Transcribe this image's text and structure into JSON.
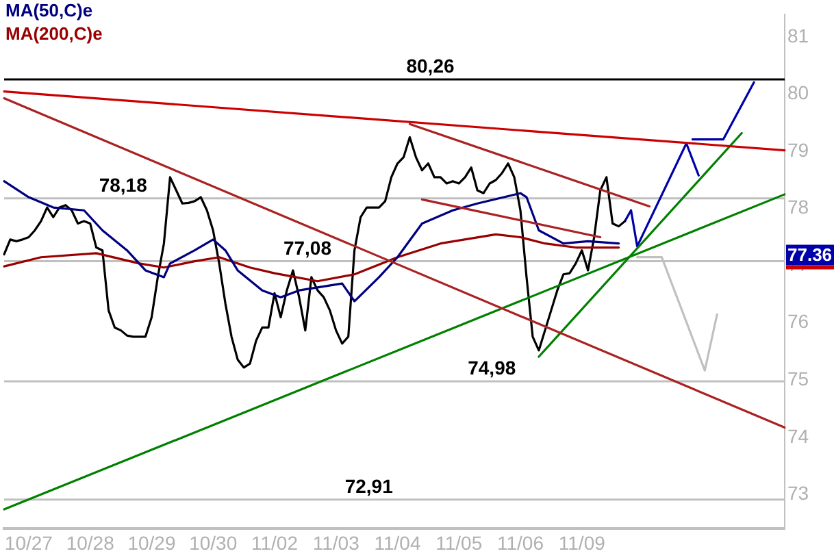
{
  "chart_data": {
    "type": "line",
    "ylim": [
      72.4,
      81.4
    ],
    "yticks": [
      73,
      74,
      75,
      76,
      77,
      78,
      79,
      80,
      81
    ],
    "categories": [
      null,
      null,
      null,
      null,
      "10/27",
      null,
      null,
      null,
      null,
      null,
      null,
      null,
      null,
      null,
      "10/28",
      null,
      null,
      null,
      null,
      null,
      null,
      null,
      null,
      null,
      "10/29",
      null,
      null,
      null,
      null,
      null,
      null,
      null,
      null,
      null,
      "10/30",
      null,
      null,
      null,
      null,
      null,
      null,
      null,
      null,
      null,
      "11/02",
      null,
      null,
      null,
      null,
      null,
      null,
      null,
      null,
      null,
      "11/03",
      null,
      null,
      null,
      null,
      null,
      null,
      null,
      null,
      null,
      "11/04",
      null,
      null,
      null,
      null,
      null,
      null,
      null,
      null,
      null,
      "11/05",
      null,
      null,
      null,
      null,
      null,
      null,
      null,
      null,
      null,
      "11/06",
      null,
      null,
      null,
      null,
      null,
      null,
      null,
      null,
      null,
      "11/09",
      null,
      null,
      null,
      null,
      null,
      null,
      null,
      null,
      null,
      null,
      null,
      null,
      null,
      null,
      null,
      null,
      null,
      null,
      null,
      null,
      null,
      null,
      null,
      null,
      null,
      null,
      null,
      null,
      null,
      null,
      null,
      null,
      null
    ],
    "legend": "top left",
    "marker": "none",
    "grid": false,
    "ref_lines": [
      {
        "axis": "y",
        "value": 80.26,
        "color": "#000000"
      },
      {
        "axis": "y",
        "value": 78.18,
        "color": "#c0c0c0"
      },
      {
        "axis": "y",
        "value": 77.08,
        "color": "#c0c0c0"
      },
      {
        "axis": "y",
        "value": 74.98,
        "color": "#c0c0c0"
      },
      {
        "axis": "y",
        "value": 72.91,
        "color": "#c0c0c0"
      }
    ],
    "annotations": [
      {
        "text": "80,26",
        "x": "11/04",
        "y": 80.26
      },
      {
        "text": "78,18",
        "x": "10/28",
        "y": 78.18
      },
      {
        "text": "77,08",
        "x": "11/02",
        "y": 77.08
      },
      {
        "text": "74,98",
        "x": "11/05",
        "y": 74.98
      },
      {
        "text": "72,91",
        "x": "11/03",
        "y": 72.91
      },
      "77.36"
    ],
    "series": [
      {
        "color": "#cc0000",
        "values": [
          80.05,
          null,
          null,
          null,
          null,
          null,
          null,
          null,
          null,
          null,
          null,
          null,
          null,
          null,
          null,
          null,
          null,
          null,
          null,
          null,
          null,
          null,
          null,
          null,
          null,
          null,
          null,
          null,
          null,
          null,
          null,
          null,
          null,
          null,
          null,
          null,
          null,
          null,
          null,
          null,
          null,
          null,
          null,
          null,
          null,
          null,
          null,
          null,
          null,
          null,
          null,
          null,
          null,
          null,
          null,
          null,
          null,
          null,
          null,
          null,
          null,
          null,
          null,
          null,
          null,
          null,
          null,
          null,
          null,
          null,
          null,
          null,
          null,
          null,
          null,
          null,
          null,
          null,
          null,
          null,
          null,
          null,
          null,
          null,
          null,
          null,
          null,
          null,
          null,
          null,
          null,
          null,
          null,
          null,
          null,
          null,
          null,
          null,
          null,
          null,
          null,
          null,
          null,
          null,
          null,
          null,
          null,
          null,
          null,
          null,
          null,
          null,
          null,
          null,
          null,
          null,
          null,
          null,
          null,
          null,
          null,
          null,
          null,
          null,
          null,
          null,
          null,
          79.02
        ]
      },
      {
        "color": "#aa2222",
        "values": [
          79.93,
          null,
          null,
          null,
          null,
          null,
          null,
          null,
          null,
          null,
          null,
          null,
          null,
          null,
          null,
          null,
          null,
          null,
          null,
          null,
          null,
          null,
          null,
          null,
          null,
          null,
          null,
          null,
          null,
          null,
          null,
          null,
          null,
          null,
          null,
          null,
          null,
          null,
          null,
          null,
          null,
          null,
          null,
          null,
          null,
          null,
          null,
          null,
          null,
          null,
          null,
          null,
          null,
          null,
          null,
          null,
          null,
          null,
          null,
          null,
          null,
          null,
          null,
          null,
          null,
          null,
          null,
          null,
          null,
          null,
          null,
          null,
          null,
          null,
          null,
          null,
          null,
          null,
          null,
          null,
          null,
          null,
          null,
          null,
          null,
          null,
          null,
          null,
          null,
          null,
          null,
          null,
          null,
          null,
          null,
          null,
          null,
          null,
          null,
          null,
          null,
          null,
          null,
          null,
          null,
          null,
          null,
          null,
          null,
          null,
          null,
          null,
          null,
          null,
          null,
          null,
          null,
          null,
          null,
          null,
          null,
          null,
          null,
          null,
          null,
          null,
          null,
          74.17
        ]
      },
      {
        "color": "#aa2222",
        "values": [
          null,
          null,
          null,
          null,
          null,
          null,
          null,
          null,
          null,
          null,
          null,
          null,
          null,
          null,
          null,
          null,
          null,
          null,
          null,
          null,
          null,
          null,
          null,
          null,
          null,
          null,
          null,
          null,
          null,
          null,
          null,
          null,
          null,
          null,
          null,
          null,
          null,
          null,
          null,
          null,
          null,
          null,
          null,
          null,
          null,
          null,
          null,
          null,
          null,
          null,
          null,
          null,
          null,
          null,
          null,
          null,
          null,
          null,
          null,
          null,
          null,
          null,
          null,
          null,
          null,
          null,
          79.48,
          null,
          null,
          null,
          null,
          null,
          null,
          null,
          null,
          null,
          null,
          null,
          null,
          null,
          null,
          null,
          null,
          null,
          null,
          null,
          null,
          null,
          null,
          null,
          null,
          null,
          null,
          null,
          null,
          null,
          null,
          null,
          null,
          null,
          null,
          null,
          null,
          null,
          null,
          78.04,
          null,
          null,
          null,
          null,
          null,
          null,
          null,
          null,
          null,
          null,
          null,
          null,
          null,
          null,
          null,
          null,
          null,
          null,
          null,
          null,
          null,
          null
        ]
      },
      {
        "color": "#aa2222",
        "values": [
          null,
          null,
          null,
          null,
          null,
          null,
          null,
          null,
          null,
          null,
          null,
          null,
          null,
          null,
          null,
          null,
          null,
          null,
          null,
          null,
          null,
          null,
          null,
          null,
          null,
          null,
          null,
          null,
          null,
          null,
          null,
          null,
          null,
          null,
          null,
          null,
          null,
          null,
          null,
          null,
          null,
          null,
          null,
          null,
          null,
          null,
          null,
          null,
          null,
          null,
          null,
          null,
          null,
          null,
          null,
          null,
          null,
          null,
          null,
          null,
          null,
          null,
          null,
          null,
          null,
          null,
          null,
          null,
          78.16,
          null,
          null,
          null,
          null,
          null,
          null,
          null,
          null,
          null,
          null,
          null,
          null,
          null,
          null,
          null,
          null,
          null,
          null,
          null,
          null,
          null,
          null,
          null,
          null,
          null,
          null,
          null,
          null,
          77.5,
          null,
          null,
          null,
          null,
          null,
          null,
          null,
          null,
          null,
          null,
          null,
          null,
          null,
          null,
          null,
          null,
          null,
          null,
          null,
          null,
          null,
          null,
          null,
          null,
          null,
          null,
          null,
          null,
          null,
          null
        ]
      },
      {
        "color": "#008000",
        "values": [
          72.74,
          null,
          null,
          null,
          null,
          null,
          null,
          null,
          null,
          null,
          null,
          null,
          null,
          null,
          null,
          null,
          null,
          null,
          null,
          null,
          null,
          null,
          null,
          null,
          null,
          null,
          null,
          null,
          null,
          null,
          null,
          null,
          null,
          null,
          null,
          null,
          null,
          null,
          null,
          null,
          null,
          null,
          null,
          null,
          null,
          null,
          null,
          null,
          null,
          null,
          null,
          null,
          null,
          null,
          null,
          null,
          null,
          null,
          null,
          null,
          null,
          null,
          null,
          null,
          null,
          null,
          null,
          null,
          null,
          null,
          null,
          null,
          null,
          null,
          null,
          null,
          null,
          null,
          null,
          null,
          null,
          null,
          null,
          null,
          null,
          null,
          null,
          null,
          null,
          null,
          null,
          null,
          null,
          null,
          null,
          null,
          null,
          null,
          null,
          null,
          null,
          null,
          null,
          null,
          null,
          null,
          null,
          null,
          null,
          null,
          null,
          null,
          null,
          null,
          null,
          null,
          null,
          null,
          null,
          null,
          null,
          null,
          null,
          null,
          null,
          null,
          null,
          78.25
        ]
      },
      {
        "color": "#008000",
        "values": [
          null,
          null,
          null,
          null,
          null,
          null,
          null,
          null,
          null,
          null,
          null,
          null,
          null,
          null,
          null,
          null,
          null,
          null,
          null,
          null,
          null,
          null,
          null,
          null,
          null,
          null,
          null,
          null,
          null,
          null,
          null,
          null,
          null,
          null,
          null,
          null,
          null,
          null,
          null,
          null,
          null,
          null,
          null,
          null,
          null,
          null,
          null,
          null,
          null,
          null,
          null,
          null,
          null,
          null,
          null,
          null,
          null,
          null,
          null,
          null,
          null,
          null,
          null,
          null,
          null,
          null,
          null,
          null,
          null,
          null,
          null,
          null,
          null,
          null,
          null,
          null,
          null,
          null,
          null,
          null,
          null,
          null,
          null,
          null,
          null,
          null,
          null,
          75.41,
          null,
          null,
          null,
          null,
          null,
          null,
          null,
          null,
          null,
          null,
          null,
          null,
          null,
          null,
          null,
          null,
          null,
          null,
          null,
          null,
          null,
          null,
          null,
          null,
          null,
          null,
          null,
          null,
          null,
          null,
          null,
          null,
          79.32,
          null,
          null,
          null,
          null,
          null,
          null,
          null
        ]
      },
      {
        "name": "MA(50,C)e",
        "color": "#000080",
        "values": [
          78.48,
          null,
          null,
          null,
          78.2,
          null,
          null,
          null,
          78.02,
          null,
          null,
          null,
          null,
          77.97,
          null,
          null,
          77.62,
          null,
          null,
          null,
          77.27,
          null,
          null,
          76.92,
          null,
          null,
          76.8,
          77.04,
          null,
          null,
          null,
          77.27,
          null,
          null,
          77.46,
          null,
          77.27,
          null,
          76.92,
          null,
          null,
          null,
          76.57,
          null,
          null,
          76.45,
          null,
          null,
          76.57,
          null,
          null,
          null,
          null,
          null,
          null,
          76.69,
          null,
          76.38,
          null,
          null,
          null,
          76.8,
          null,
          null,
          77.15,
          null,
          null,
          null,
          77.74,
          null,
          null,
          null,
          null,
          77.97,
          null,
          null,
          null,
          78.09,
          null,
          null,
          null,
          null,
          null,
          null,
          78.27,
          78.2,
          null,
          77.62,
          null,
          null,
          null,
          77.39,
          null,
          null,
          null,
          77.43,
          null,
          null,
          null,
          null,
          77.39,
          null,
          null,
          null,
          null,
          null,
          null,
          null,
          null,
          null,
          null,
          null,
          null,
          null,
          null,
          null,
          null,
          null,
          null,
          null,
          null,
          null,
          null,
          null,
          null,
          null,
          null,
          null
        ]
      },
      {
        "name": "MA(200,C)e",
        "color": "#990000",
        "values": [
          76.99,
          null,
          null,
          null,
          null,
          null,
          77.15,
          null,
          null,
          null,
          null,
          null,
          null,
          null,
          null,
          77.22,
          null,
          null,
          null,
          null,
          null,
          null,
          77.04,
          null,
          null,
          null,
          76.97,
          null,
          null,
          null,
          null,
          77.08,
          null,
          null,
          null,
          77.15,
          null,
          null,
          null,
          null,
          76.97,
          null,
          null,
          null,
          76.87,
          null,
          null,
          null,
          null,
          null,
          null,
          76.73,
          null,
          null,
          null,
          null,
          null,
          76.85,
          null,
          null,
          null,
          null,
          null,
          null,
          77.15,
          null,
          null,
          null,
          null,
          null,
          null,
          77.39,
          null,
          null,
          null,
          null,
          null,
          null,
          null,
          null,
          77.55,
          null,
          null,
          null,
          77.5,
          null,
          null,
          null,
          77.39,
          null,
          null,
          null,
          null,
          77.32,
          null,
          null,
          null,
          null,
          null,
          null,
          77.32,
          null,
          null,
          null,
          null,
          null,
          null,
          null,
          null,
          null,
          null,
          null,
          null,
          null,
          null,
          null,
          null,
          null,
          null,
          null,
          null,
          null,
          null,
          null,
          null,
          null,
          null,
          null
        ]
      },
      {
        "color": "#000000",
        "values": [
          77.2,
          77.46,
          77.43,
          77.46,
          77.5,
          77.62,
          77.78,
          78.02,
          77.85,
          78.02,
          78.06,
          77.97,
          77.74,
          77.78,
          77.74,
          77.32,
          77.27,
          76.22,
          75.92,
          75.87,
          75.78,
          75.76,
          75.76,
          75.76,
          76.1,
          76.8,
          77.39,
          78.55,
          78.32,
          78.09,
          78.1,
          78.13,
          78.2,
          77.97,
          77.62,
          77.04,
          76.34,
          75.76,
          75.36,
          75.22,
          75.29,
          75.69,
          75.92,
          75.92,
          76.52,
          76.1,
          76.57,
          76.92,
          76.45,
          75.87,
          76.8,
          76.57,
          76.45,
          76.22,
          75.87,
          75.64,
          75.76,
          77.27,
          77.85,
          78.02,
          78.02,
          78.02,
          78.13,
          78.55,
          78.79,
          78.9,
          79.25,
          78.9,
          78.67,
          78.79,
          78.55,
          78.55,
          78.44,
          78.48,
          78.44,
          78.55,
          78.72,
          78.32,
          78.27,
          78.44,
          78.5,
          78.62,
          78.79,
          78.55,
          77.97,
          76.8,
          75.76,
          75.52,
          75.87,
          76.22,
          76.57,
          76.85,
          76.87,
          77.04,
          77.27,
          76.92,
          77.5,
          78.32,
          78.55,
          77.74,
          77.69,
          77.78,
          null,
          null,
          null,
          null,
          null,
          null,
          null,
          null,
          null,
          null,
          null,
          null,
          null,
          null,
          null,
          null,
          null,
          null,
          null,
          null,
          null,
          null,
          null,
          null,
          null,
          null
        ]
      },
      {
        "color": "#0000aa",
        "values": [
          null,
          null,
          null,
          null,
          null,
          null,
          null,
          null,
          null,
          null,
          null,
          null,
          null,
          null,
          null,
          null,
          null,
          null,
          null,
          null,
          null,
          null,
          null,
          null,
          null,
          null,
          null,
          null,
          null,
          null,
          null,
          null,
          null,
          null,
          null,
          null,
          null,
          null,
          null,
          null,
          null,
          null,
          null,
          null,
          null,
          null,
          null,
          null,
          null,
          null,
          null,
          null,
          null,
          null,
          null,
          null,
          null,
          null,
          null,
          null,
          null,
          null,
          null,
          null,
          null,
          null,
          null,
          null,
          null,
          null,
          null,
          null,
          null,
          null,
          null,
          null,
          null,
          null,
          null,
          null,
          null,
          null,
          null,
          null,
          null,
          null,
          null,
          null,
          null,
          null,
          null,
          null,
          null,
          null,
          null,
          null,
          null,
          null,
          null,
          null,
          null,
          77.78,
          77.97,
          77.34,
          null,
          null,
          null,
          null,
          null,
          null,
          null,
          79.14,
          null,
          78.58,
          null,
          null,
          null,
          null,
          null,
          null,
          null,
          null,
          null,
          null,
          null,
          null,
          null,
          null
        ]
      },
      {
        "color": "#0000aa",
        "values": [
          null,
          null,
          null,
          null,
          null,
          null,
          null,
          null,
          null,
          null,
          null,
          null,
          null,
          null,
          null,
          null,
          null,
          null,
          null,
          null,
          null,
          null,
          null,
          null,
          null,
          null,
          null,
          null,
          null,
          null,
          null,
          null,
          null,
          null,
          null,
          null,
          null,
          null,
          null,
          null,
          null,
          null,
          null,
          null,
          null,
          null,
          null,
          null,
          null,
          null,
          null,
          null,
          null,
          null,
          null,
          null,
          null,
          null,
          null,
          null,
          null,
          null,
          null,
          null,
          null,
          null,
          null,
          null,
          null,
          null,
          null,
          null,
          null,
          null,
          null,
          null,
          null,
          null,
          null,
          null,
          null,
          null,
          null,
          null,
          null,
          null,
          null,
          null,
          null,
          null,
          null,
          null,
          null,
          null,
          null,
          null,
          null,
          null,
          null,
          null,
          null,
          null,
          null,
          null,
          null,
          null,
          null,
          null,
          null,
          null,
          null,
          null,
          79.21,
          null,
          null,
          null,
          null,
          79.21,
          null,
          null,
          null,
          null,
          80.21,
          null,
          null,
          null,
          null,
          null
        ]
      },
      {
        "color": "#c0c0c0",
        "values": [
          null,
          null,
          null,
          null,
          null,
          null,
          null,
          null,
          null,
          null,
          null,
          null,
          null,
          null,
          null,
          null,
          null,
          null,
          null,
          null,
          null,
          null,
          null,
          null,
          null,
          null,
          null,
          null,
          null,
          null,
          null,
          null,
          null,
          null,
          null,
          null,
          null,
          null,
          null,
          null,
          null,
          null,
          null,
          null,
          null,
          null,
          null,
          null,
          null,
          null,
          null,
          null,
          null,
          null,
          null,
          null,
          null,
          null,
          null,
          null,
          null,
          null,
          null,
          null,
          null,
          null,
          null,
          null,
          null,
          null,
          null,
          null,
          null,
          null,
          null,
          null,
          null,
          null,
          null,
          null,
          null,
          null,
          null,
          null,
          null,
          null,
          null,
          null,
          null,
          null,
          null,
          null,
          null,
          null,
          null,
          null,
          null,
          null,
          null,
          null,
          null,
          null,
          null,
          77.15,
          null,
          null,
          null,
          77.15,
          null,
          null,
          null,
          null,
          null,
          null,
          75.17,
          null,
          76.15,
          null,
          null,
          null,
          null,
          null,
          null,
          null,
          null,
          null,
          null,
          null
        ]
      }
    ]
  }
}
